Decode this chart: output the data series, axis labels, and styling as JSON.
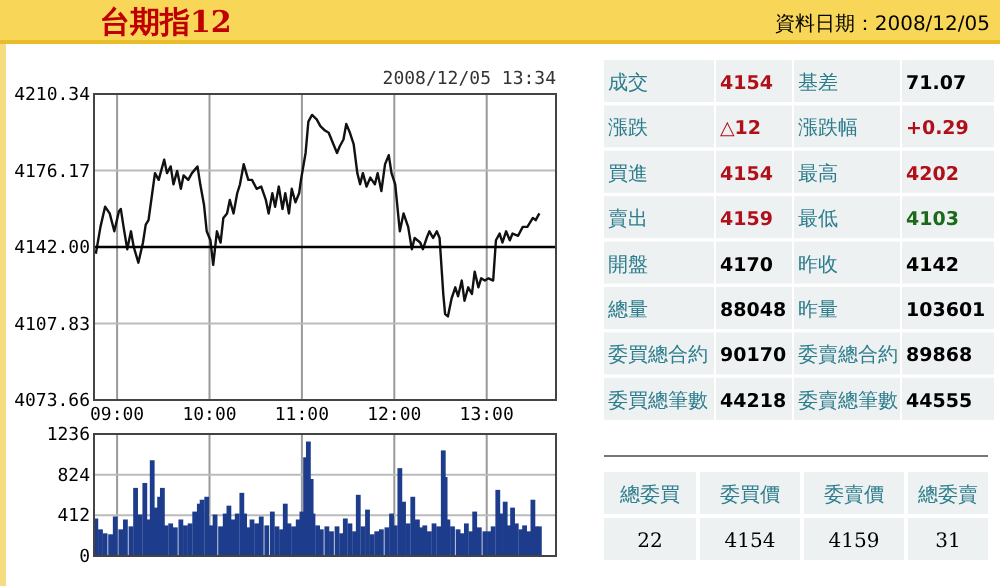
{
  "chart_data": [
    {
      "type": "line",
      "title": "台期指12",
      "subtitle": "2008/12/05 13:34",
      "color": "#111111",
      "grid": true,
      "xlim": [
        8.75,
        13.75
      ],
      "ylim": [
        4073.66,
        4210.34
      ],
      "xticks": [
        {
          "value": 9,
          "label": "09:00"
        },
        {
          "value": 10,
          "label": "10:00"
        },
        {
          "value": 11,
          "label": "11:00"
        },
        {
          "value": 12,
          "label": "12:00"
        },
        {
          "value": 13,
          "label": "13:00"
        }
      ],
      "yticks": [
        {
          "value": 4073.66,
          "label": "4073.66"
        },
        {
          "value": 4107.83,
          "label": "4107.83"
        },
        {
          "value": 4142,
          "label": "4142.00"
        },
        {
          "value": 4176.17,
          "label": "4176.17"
        },
        {
          "value": 4210.34,
          "label": "4210.34"
        }
      ],
      "ref_lines": [
        {
          "axis": "y",
          "value": 4142,
          "color": "#000000"
        }
      ],
      "x": [
        8.77,
        8.82,
        8.87,
        8.92,
        8.97,
        9.02,
        9.04,
        9.07,
        9.11,
        9.15,
        9.18,
        9.23,
        9.28,
        9.31,
        9.34,
        9.38,
        9.41,
        9.45,
        9.51,
        9.54,
        9.58,
        9.61,
        9.65,
        9.69,
        9.72,
        9.77,
        9.81,
        9.87,
        9.9,
        9.94,
        9.97,
        10.01,
        10.04,
        10.08,
        10.12,
        10.15,
        10.19,
        10.22,
        10.26,
        10.3,
        10.33,
        10.37,
        10.42,
        10.46,
        10.51,
        10.56,
        10.61,
        10.64,
        10.68,
        10.71,
        10.75,
        10.79,
        10.82,
        10.86,
        10.89,
        10.93,
        10.97,
        10.99,
        11.04,
        11.07,
        11.11,
        11.16,
        11.2,
        11.25,
        11.29,
        11.34,
        11.38,
        11.41,
        11.45,
        11.48,
        11.52,
        11.56,
        11.6,
        11.63,
        11.66,
        11.7,
        11.74,
        11.79,
        11.82,
        11.86,
        11.9,
        11.94,
        11.97,
        12.01,
        12.06,
        12.1,
        12.15,
        12.19,
        12.22,
        12.28,
        12.31,
        12.35,
        12.38,
        12.42,
        12.46,
        12.49,
        12.53,
        12.55,
        12.58,
        12.62,
        12.66,
        12.69,
        12.73,
        12.76,
        12.8,
        12.84,
        12.87,
        12.91,
        12.94,
        12.98,
        13.02,
        13.07,
        13.1,
        13.14,
        13.17,
        13.21,
        13.25,
        13.28,
        13.34,
        13.39,
        13.44,
        13.5,
        13.53,
        13.57
      ],
      "values": [
        4139,
        4151,
        4160,
        4157,
        4149,
        4158,
        4159,
        4151,
        4141,
        4149,
        4142,
        4135,
        4144,
        4152,
        4154,
        4166,
        4175,
        4172,
        4181,
        4175,
        4178,
        4170,
        4176,
        4168,
        4174,
        4172,
        4175,
        4178,
        4170,
        4161,
        4149,
        4145,
        4134,
        4149,
        4144,
        4155,
        4157,
        4163,
        4157,
        4166,
        4170,
        4179,
        4172,
        4172,
        4168,
        4169,
        4163,
        4157,
        4166,
        4160,
        4169,
        4159,
        4166,
        4157,
        4168,
        4162,
        4166,
        4172,
        4184,
        4198,
        4201,
        4199,
        4196,
        4194,
        4193,
        4188,
        4184,
        4187,
        4190,
        4197,
        4193,
        4188,
        4175,
        4170,
        4175,
        4169,
        4173,
        4170,
        4175,
        4167,
        4179,
        4183,
        4175,
        4170,
        4149,
        4157,
        4151,
        4141,
        4146,
        4144,
        4141,
        4146,
        4149,
        4146,
        4149,
        4146,
        4121,
        4112,
        4111,
        4119,
        4124,
        4120,
        4127,
        4118,
        4124,
        4121,
        4131,
        4124,
        4128,
        4127,
        4128,
        4127,
        4145,
        4148,
        4144,
        4149,
        4145,
        4148,
        4147,
        4151,
        4151,
        4155,
        4154,
        4157
      ]
    },
    {
      "type": "bar",
      "color": "#1d3c8c",
      "grid": true,
      "tick_labels": "y",
      "xlim": [
        8.75,
        13.75
      ],
      "ylim": [
        0,
        1236
      ],
      "xticks": [
        {
          "value": 9,
          "label": null
        },
        {
          "value": 10,
          "label": null
        },
        {
          "value": 11,
          "label": null
        },
        {
          "value": 12,
          "label": null
        },
        {
          "value": 13,
          "label": null
        }
      ],
      "yticks": [
        0,
        412,
        824,
        1236
      ],
      "x": [
        8.77,
        8.82,
        8.87,
        8.93,
        8.98,
        9.04,
        9.09,
        9.15,
        9.2,
        9.25,
        9.3,
        9.34,
        9.38,
        9.42,
        9.46,
        9.49,
        9.53,
        9.58,
        9.63,
        9.69,
        9.74,
        9.79,
        9.84,
        9.89,
        9.92,
        9.97,
        10.02,
        10.06,
        10.12,
        10.17,
        10.21,
        10.25,
        10.3,
        10.35,
        10.38,
        10.42,
        10.46,
        10.51,
        10.56,
        10.62,
        10.68,
        10.73,
        10.78,
        10.82,
        10.86,
        10.91,
        10.96,
        11.0,
        11.04,
        11.07,
        11.1,
        11.12,
        11.17,
        11.21,
        11.27,
        11.32,
        11.38,
        11.43,
        11.47,
        11.52,
        11.57,
        11.61,
        11.66,
        11.71,
        11.76,
        11.81,
        11.86,
        11.92,
        11.97,
        12.01,
        12.06,
        12.1,
        12.15,
        12.2,
        12.25,
        12.29,
        12.33,
        12.38,
        12.43,
        12.48,
        12.53,
        12.55,
        12.58,
        12.63,
        12.69,
        12.73,
        12.78,
        12.83,
        12.87,
        12.92,
        12.98,
        13.03,
        13.07,
        13.12,
        13.15,
        13.2,
        13.24,
        13.28,
        13.32,
        13.37,
        13.41,
        13.46,
        13.5,
        13.53,
        13.57
      ],
      "values": [
        380,
        270,
        230,
        220,
        400,
        270,
        370,
        300,
        690,
        420,
        740,
        370,
        970,
        490,
        600,
        690,
        310,
        330,
        290,
        370,
        310,
        330,
        450,
        530,
        570,
        600,
        310,
        420,
        300,
        430,
        510,
        370,
        430,
        640,
        430,
        290,
        370,
        330,
        400,
        310,
        450,
        300,
        270,
        530,
        330,
        300,
        370,
        450,
        1000,
        1160,
        780,
        430,
        310,
        270,
        300,
        250,
        300,
        230,
        380,
        330,
        250,
        620,
        300,
        470,
        220,
        250,
        270,
        290,
        430,
        310,
        890,
        550,
        330,
        600,
        370,
        290,
        310,
        250,
        330,
        300,
        1070,
        800,
        370,
        300,
        270,
        230,
        330,
        250,
        450,
        290,
        250,
        250,
        300,
        670,
        430,
        550,
        310,
        490,
        330,
        270,
        310,
        250,
        570,
        300,
        300
      ]
    },
    {
      "type": "other",
      "title": "資料日期：2008/12/05",
      "annotations": [
        "成交",
        "4154",
        "基差",
        "71.07",
        "漲跌",
        "△12",
        "漲跌幅",
        "+0.29",
        "買進",
        "4154",
        "最高",
        "4202",
        "賣出",
        "4159",
        "最低",
        "4103",
        "開盤",
        "4170",
        "昨收",
        "4142",
        "總量",
        "88048",
        "昨量",
        "103601",
        "委買總合約",
        "90170",
        "委賣總合約",
        "89868",
        "委買總筆數",
        "44218",
        "委賣總筆數",
        "44555",
        "總委買",
        "委買價",
        "委賣價",
        "總委賣",
        "22",
        "4154",
        "4159",
        "31"
      ]
    }
  ]
}
